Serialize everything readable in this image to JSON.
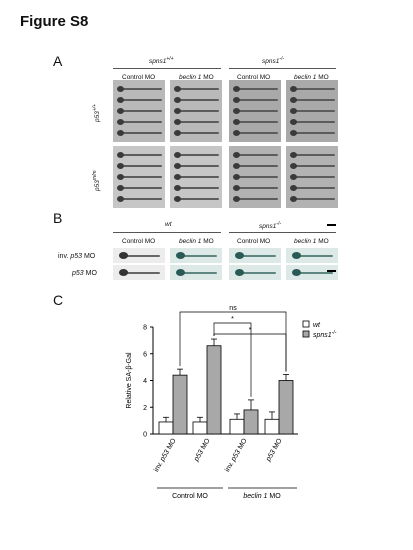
{
  "figure_title": "Figure S8",
  "panel_a": {
    "letter": "A",
    "group_left": "spns1",
    "group_left_sup": "+/+",
    "group_right": "spns1",
    "group_right_sup": "-/-",
    "col_control": "Control MO",
    "col_beclin": "beclin 1",
    "col_beclin_suffix": " MO",
    "row1": "p53",
    "row1_sup": "+/+",
    "row2": "p53",
    "row2_sup": "m/m"
  },
  "panel_b": {
    "letter": "B",
    "group_left": "wt",
    "group_right": "spns1",
    "group_right_sup": "-/-",
    "col_control": "Control MO",
    "col_beclin": "beclin 1",
    "col_beclin_suffix": " MO",
    "row1_prefix": "inv. ",
    "row1_gene": "p53",
    "row1_suffix": " MO",
    "row2_gene": "p53",
    "row2_suffix": " MO"
  },
  "panel_c": {
    "letter": "C",
    "ns_label": "ns",
    "star1": "*",
    "star2": "*",
    "legend_wt": "wt",
    "legend_spns": "spns1",
    "legend_spns_sup": "-/-",
    "group_control": "Control MO",
    "group_beclin": "beclin 1",
    "group_beclin_suffix": " MO",
    "colors": {
      "wt": "#ffffff",
      "spns1": "#a8a8a8",
      "axis": "#000000"
    }
  },
  "chart_data": {
    "type": "bar",
    "title": "",
    "xlabel": "",
    "ylabel": "Relative SA-β-Gal",
    "ylim": [
      0,
      8
    ],
    "yticks": [
      0,
      2,
      4,
      6,
      8
    ],
    "categories": [
      "inv. p53 MO",
      "p53 MO",
      "inv. p53 MO",
      "p53 MO"
    ],
    "groups": [
      "Control MO",
      "Control MO",
      "beclin 1 MO",
      "beclin 1 MO"
    ],
    "series": [
      {
        "name": "wt",
        "values": [
          0.9,
          0.9,
          1.1,
          1.1
        ],
        "errors": [
          0.35,
          0.35,
          0.4,
          0.55
        ]
      },
      {
        "name": "spns1-/-",
        "values": [
          4.4,
          6.6,
          1.8,
          4.0
        ],
        "errors": [
          0.45,
          0.5,
          0.75,
          0.45
        ]
      }
    ],
    "legend_position": "top-right"
  }
}
